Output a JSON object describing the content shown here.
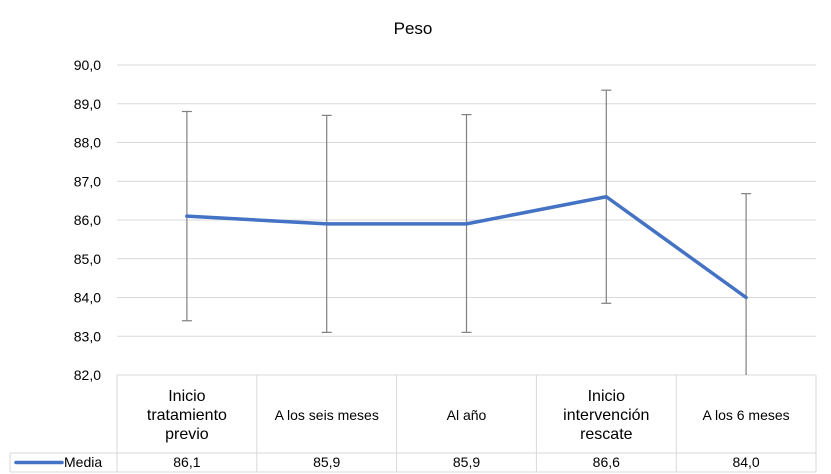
{
  "chart_data": {
    "type": "line",
    "title": "Peso",
    "xlabel": "",
    "ylabel": "",
    "ylim": [
      82.0,
      90.0
    ],
    "ytick_step": 1.0,
    "yticks": [
      "82,0",
      "83,0",
      "84,0",
      "85,0",
      "86,0",
      "87,0",
      "88,0",
      "89,0",
      "90,0"
    ],
    "grid": true,
    "categories": [
      [
        "Inicio",
        "tratamiento",
        "previo"
      ],
      [
        "A los seis meses"
      ],
      [
        "Al año"
      ],
      [
        "Inicio",
        "intervención",
        "rescate"
      ],
      [
        "A los 6 meses"
      ]
    ],
    "series": [
      {
        "name": "Media",
        "color": "#4472c4",
        "values": [
          86.1,
          85.9,
          85.9,
          86.6,
          84.0
        ],
        "value_labels": [
          "86,1",
          "85,9",
          "85,9",
          "86,6",
          "84,0"
        ],
        "error_low": [
          83.4,
          83.1,
          83.1,
          83.85,
          82.0
        ],
        "error_high": [
          88.8,
          88.7,
          88.72,
          89.35,
          86.68
        ]
      }
    ],
    "data_table": true,
    "legend": "data-table"
  }
}
